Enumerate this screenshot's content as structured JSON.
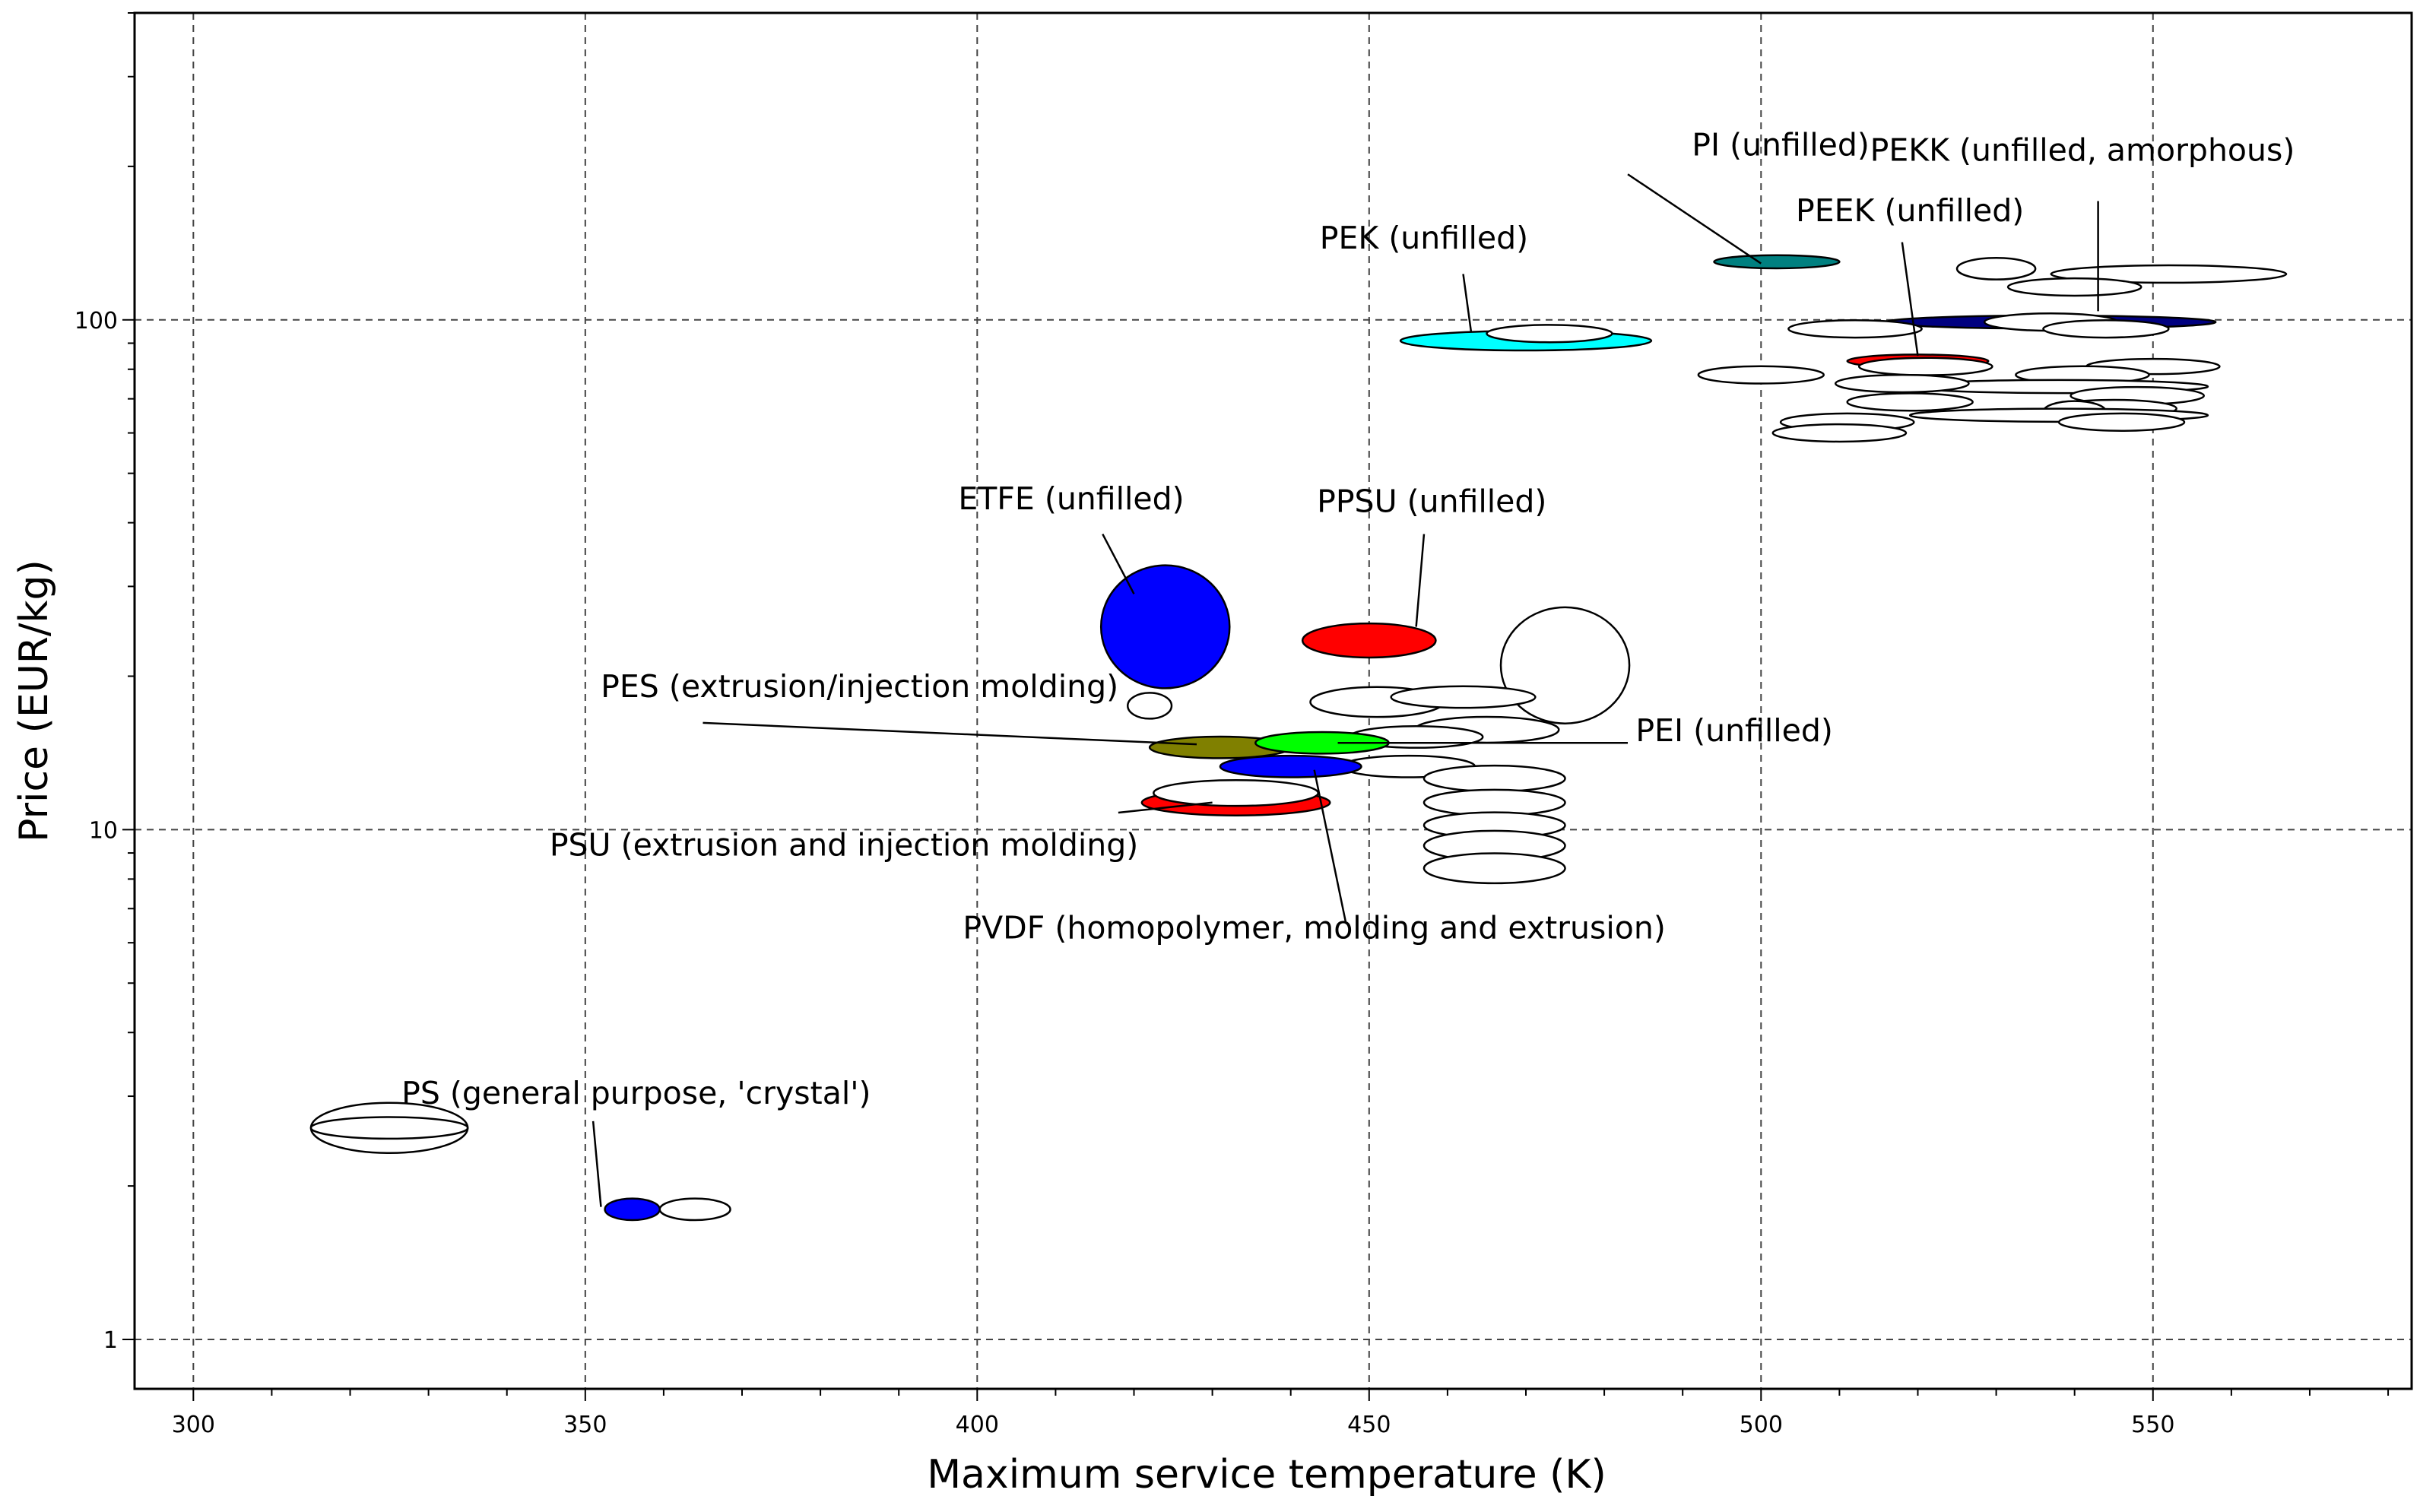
{
  "chart_data": {
    "type": "scatter",
    "subtype": "property-bubble",
    "xlabel": "Maximum service temperature (K)",
    "ylabel": "Price (EUR/kg)",
    "xscale": "linear",
    "yscale": "log",
    "xlim": [
      292.5,
      583
    ],
    "ylim": [
      0.8,
      400
    ],
    "grid": true,
    "xticks": [
      {
        "value": 300,
        "label": "300"
      },
      {
        "value": 350,
        "label": "350"
      },
      {
        "value": 400,
        "label": "400"
      },
      {
        "value": 450,
        "label": "450"
      },
      {
        "value": 500,
        "label": "500"
      },
      {
        "value": 550,
        "label": "550"
      }
    ],
    "yticks": [
      {
        "value": 1,
        "label": "1"
      },
      {
        "value": 10,
        "label": "10"
      },
      {
        "value": 100,
        "label": "100"
      }
    ],
    "bubbles": [
      {
        "name": "PS (general purpose, 'crystal')",
        "x": 356,
        "xw": 3.5,
        "y": 1.8,
        "yf": 1.05,
        "color": "#0000ff"
      },
      {
        "name": "",
        "x": 364,
        "xw": 4.5,
        "y": 1.8,
        "yf": 1.05,
        "color": "#ffffff"
      },
      {
        "name": "",
        "x": 325,
        "xw": 10,
        "y": 2.6,
        "yf": 1.12,
        "color": "#ffffff"
      },
      {
        "name": "",
        "x": 325,
        "xw": 10,
        "y": 2.6,
        "yf": 1.05,
        "color": "#ffffff"
      },
      {
        "name": "ETFE (unfilled)",
        "x": 424,
        "xw": 8.2,
        "y": 25,
        "yf": 1.32,
        "color": "#0000ff"
      },
      {
        "name": "",
        "x": 422,
        "xw": 2.8,
        "y": 17.5,
        "yf": 1.06,
        "color": "#ffffff"
      },
      {
        "name": "",
        "x": 475,
        "xw": 8.2,
        "y": 21,
        "yf": 1.3,
        "color": "#ffffff"
      },
      {
        "name": "PPSU (unfilled)",
        "x": 450,
        "xw": 8.5,
        "y": 23.5,
        "yf": 1.08,
        "color": "#ff0000"
      },
      {
        "name": "",
        "x": 451,
        "xw": 8.5,
        "y": 17.8,
        "yf": 1.07,
        "color": "#ffffff"
      },
      {
        "name": "",
        "x": 462,
        "xw": 9.2,
        "y": 18.2,
        "yf": 1.05,
        "color": "#ffffff"
      },
      {
        "name": "",
        "x": 465,
        "xw": 9.2,
        "y": 15.7,
        "yf": 1.06,
        "color": "#ffffff"
      },
      {
        "name": "",
        "x": 456,
        "xw": 8.5,
        "y": 15.2,
        "yf": 1.05,
        "color": "#ffffff"
      },
      {
        "name": "",
        "x": 455,
        "xw": 8.5,
        "y": 13.3,
        "yf": 1.05,
        "color": "#ffffff"
      },
      {
        "name": "PES (extrusion/injection molding)",
        "x": 431,
        "xw": 9,
        "y": 14.5,
        "yf": 1.05,
        "color": "#808000"
      },
      {
        "name": "PEI (unfilled)",
        "x": 444,
        "xw": 8.5,
        "y": 14.8,
        "yf": 1.05,
        "color": "#00ff00"
      },
      {
        "name": "PVDF (homopolymer, molding and extrusion)",
        "x": 440,
        "xw": 9,
        "y": 13.3,
        "yf": 1.05,
        "color": "#0000ff"
      },
      {
        "name": "PSU (extrusion and injection molding)",
        "x": 433,
        "xw": 12,
        "y": 11.3,
        "yf": 1.06,
        "color": "#ff0000"
      },
      {
        "name": "",
        "x": 433,
        "xw": 10.5,
        "y": 11.8,
        "yf": 1.06,
        "color": "#ffffff"
      },
      {
        "name": "",
        "x": 466,
        "xw": 9,
        "y": 12.6,
        "yf": 1.06,
        "color": "#ffffff"
      },
      {
        "name": "",
        "x": 466,
        "xw": 9,
        "y": 11.3,
        "yf": 1.06,
        "color": "#ffffff"
      },
      {
        "name": "",
        "x": 466,
        "xw": 9,
        "y": 10.2,
        "yf": 1.06,
        "color": "#ffffff"
      },
      {
        "name": "",
        "x": 466,
        "xw": 9,
        "y": 9.3,
        "yf": 1.07,
        "color": "#ffffff"
      },
      {
        "name": "",
        "x": 466,
        "xw": 9,
        "y": 8.4,
        "yf": 1.07,
        "color": "#ffffff"
      },
      {
        "name": "PI (unfilled)",
        "x": 502,
        "xw": 8,
        "y": 130,
        "yf": 1.03,
        "color": "#008080"
      },
      {
        "name": "PEK (unfilled)",
        "x": 470,
        "xw": 16,
        "y": 91,
        "yf": 1.045,
        "color": "#00ffff"
      },
      {
        "name": "",
        "x": 473,
        "xw": 8,
        "y": 94,
        "yf": 1.04,
        "color": "#ffffff"
      },
      {
        "name": "PEEK (unfilled)",
        "x": 520,
        "xw": 9,
        "y": 83,
        "yf": 1.03,
        "color": "#ff0000"
      },
      {
        "name": "PEKK (unfilled, amorphous)",
        "x": 537,
        "xw": 21,
        "y": 99,
        "yf": 1.03,
        "color": "#000080"
      },
      {
        "name": "",
        "x": 512,
        "xw": 8.5,
        "y": 96,
        "yf": 1.04,
        "color": "#ffffff"
      },
      {
        "name": "",
        "x": 537,
        "xw": 8.5,
        "y": 99,
        "yf": 1.04,
        "color": "#ffffff"
      },
      {
        "name": "",
        "x": 544,
        "xw": 8,
        "y": 96,
        "yf": 1.04,
        "color": "#ffffff"
      },
      {
        "name": "",
        "x": 530,
        "xw": 5,
        "y": 126,
        "yf": 1.05,
        "color": "#ffffff"
      },
      {
        "name": "",
        "x": 552,
        "xw": 15,
        "y": 123,
        "yf": 1.04,
        "color": "#ffffff"
      },
      {
        "name": "",
        "x": 540,
        "xw": 8.5,
        "y": 116,
        "yf": 1.04,
        "color": "#ffffff"
      },
      {
        "name": "",
        "x": 500,
        "xw": 8,
        "y": 78,
        "yf": 1.04,
        "color": "#ffffff"
      },
      {
        "name": "",
        "x": 521,
        "xw": 8.5,
        "y": 81,
        "yf": 1.04,
        "color": "#ffffff"
      },
      {
        "name": "",
        "x": 550,
        "xw": 8.5,
        "y": 81,
        "yf": 1.035,
        "color": "#ffffff"
      },
      {
        "name": "",
        "x": 541,
        "xw": 8.5,
        "y": 78,
        "yf": 1.04,
        "color": "#ffffff"
      },
      {
        "name": "",
        "x": 538,
        "xw": 19,
        "y": 74,
        "yf": 1.03,
        "color": "#ffffff"
      },
      {
        "name": "",
        "x": 518,
        "xw": 8.5,
        "y": 75,
        "yf": 1.04,
        "color": "#ffffff"
      },
      {
        "name": "",
        "x": 548,
        "xw": 8.5,
        "y": 71,
        "yf": 1.04,
        "color": "#ffffff"
      },
      {
        "name": "",
        "x": 519,
        "xw": 8,
        "y": 69,
        "yf": 1.04,
        "color": "#ffffff"
      },
      {
        "name": "",
        "x": 545,
        "xw": 8,
        "y": 67,
        "yf": 1.04,
        "color": "#ffffff"
      },
      {
        "name": "",
        "x": 540,
        "xw": 4,
        "y": 66,
        "yf": 1.05,
        "color": "#ffffff"
      },
      {
        "name": "",
        "x": 538,
        "xw": 19,
        "y": 65,
        "yf": 1.03,
        "color": "#ffffff"
      },
      {
        "name": "",
        "x": 546,
        "xw": 8,
        "y": 63,
        "yf": 1.04,
        "color": "#ffffff"
      },
      {
        "name": "",
        "x": 511,
        "xw": 8.5,
        "y": 63,
        "yf": 1.04,
        "color": "#ffffff"
      },
      {
        "name": "",
        "x": 510,
        "xw": 8.5,
        "y": 60,
        "yf": 1.04,
        "color": "#ffffff"
      }
    ],
    "annotations": [
      {
        "text": "PI (unfilled)",
        "tx": 502.5,
        "ty": 210,
        "anchor": "middle",
        "ax": 500,
        "ay": 129,
        "lx": 483,
        "ly": 193
      },
      {
        "text": "PEKK (unfilled, amorphous)",
        "tx": 541,
        "ty": 205,
        "anchor": "middle",
        "ax": 543,
        "ay": 104,
        "lx": 543,
        "ly": 171
      },
      {
        "text": "PEEK (unfilled)",
        "tx": 519,
        "ty": 156,
        "anchor": "middle",
        "ax": 520,
        "ay": 85,
        "lx": 518,
        "ly": 142
      },
      {
        "text": "PEK (unfilled)",
        "tx": 457,
        "ty": 138,
        "anchor": "middle",
        "ax": 463,
        "ay": 95,
        "lx": 462,
        "ly": 123
      },
      {
        "text": "ETFE (unfilled)",
        "tx": 412,
        "ty": 42.5,
        "anchor": "middle",
        "ax": 420,
        "ay": 29,
        "lx": 416,
        "ly": 38
      },
      {
        "text": "PPSU (unfilled)",
        "tx": 458,
        "ty": 42,
        "anchor": "middle",
        "ax": 456,
        "ay": 25,
        "lx": 457,
        "ly": 38
      },
      {
        "text": "PES (extrusion/injection molding)",
        "tx": 385,
        "ty": 18.2,
        "anchor": "middle",
        "ax": 428,
        "ay": 14.7,
        "lx": 365,
        "ly": 16.2
      },
      {
        "text": "PEI (unfilled)",
        "tx": 484,
        "ty": 14.9,
        "anchor": "start",
        "ax": 446,
        "ay": 14.8,
        "lx": 483,
        "ly": 14.8
      },
      {
        "text": "PSU (extrusion and injection molding)",
        "tx": 383,
        "ty": 8.9,
        "anchor": "middle",
        "ax": 430,
        "ay": 11.3,
        "lx": 418,
        "ly": 10.8
      },
      {
        "text": "PVDF (homopolymer, molding and extrusion)",
        "tx": 443,
        "ty": 6.12,
        "anchor": "middle",
        "ax": 443,
        "ay": 13.1,
        "lx": 447,
        "ly": 6.6
      },
      {
        "text": "PS (general purpose, 'crystal')",
        "tx": 356.5,
        "ty": 2.9,
        "anchor": "middle",
        "ax": 352,
        "ay": 1.82,
        "lx": 351,
        "ly": 2.68
      }
    ]
  }
}
